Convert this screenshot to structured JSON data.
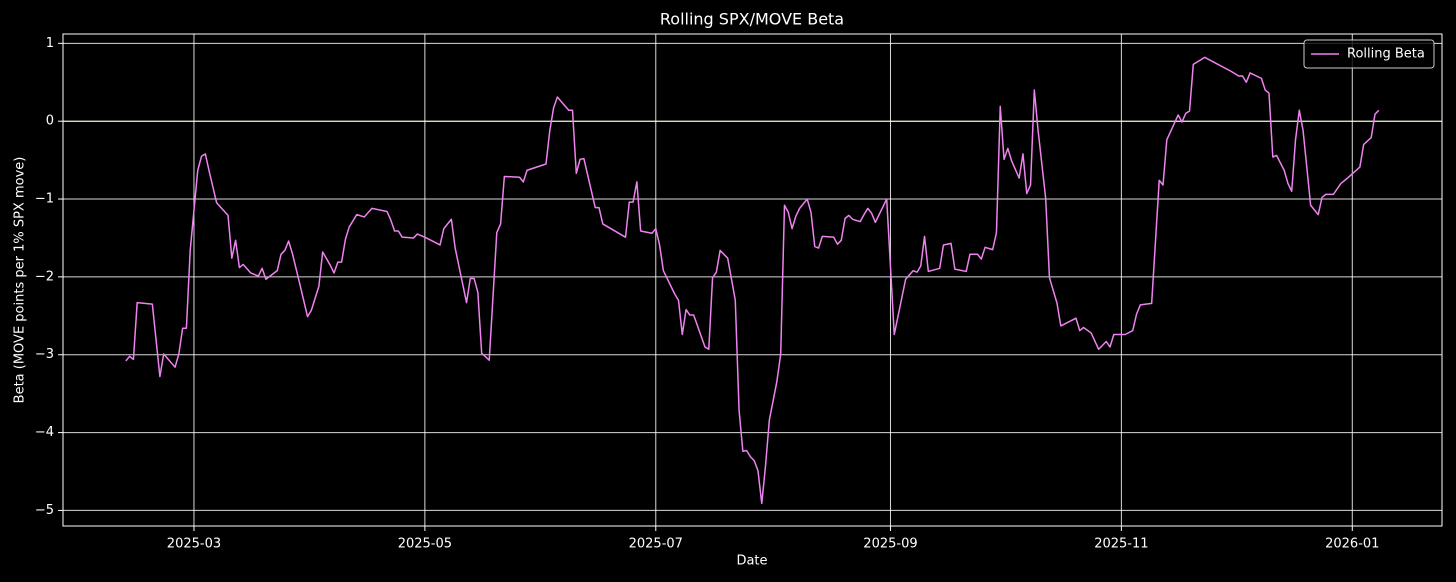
{
  "chart_data": {
    "type": "line",
    "title": "Rolling SPX/MOVE Beta",
    "x_label": "Date",
    "y_label": "Beta (MOVE points per 1% SPX move)",
    "xlim": [
      24.4,
      388.7
    ],
    "xticks": [
      {
        "value": 59,
        "label": "2025-03"
      },
      {
        "value": 120,
        "label": "2025-05"
      },
      {
        "value": 181,
        "label": "2025-07"
      },
      {
        "value": 243,
        "label": "2025-09"
      },
      {
        "value": 304,
        "label": "2025-11"
      },
      {
        "value": 365,
        "label": "2026-01"
      }
    ],
    "ylim": [
      -5.2,
      1.12
    ],
    "yticks": [
      {
        "value": -5,
        "label": "−5"
      },
      {
        "value": -4,
        "label": "−4"
      },
      {
        "value": -3,
        "label": "−3"
      },
      {
        "value": -2,
        "label": "−2"
      },
      {
        "value": -1,
        "label": "−1"
      },
      0,
      1
    ],
    "grid": true,
    "grid_color": "#ffffff",
    "hline": 0,
    "hline_color": "#ffffcc",
    "legend": "upper right",
    "x": [
      41,
      42,
      43,
      44,
      48,
      50,
      51,
      54,
      55,
      56,
      57,
      58,
      60,
      61,
      62,
      63,
      65,
      68,
      69,
      70,
      71,
      72,
      74,
      76,
      77,
      78,
      81,
      82,
      83,
      84,
      85,
      87,
      89,
      90,
      92,
      93,
      95,
      96,
      97,
      98,
      99,
      100,
      102,
      104,
      106,
      107,
      110,
      111,
      112,
      113,
      114,
      117,
      118,
      120,
      124,
      125,
      127,
      128,
      131,
      132,
      133,
      134,
      135,
      137,
      139,
      140,
      141,
      145,
      146,
      147,
      152,
      153,
      154,
      155,
      158,
      159,
      160,
      161,
      162,
      165,
      166,
      167,
      173,
      174,
      175,
      176,
      177,
      180,
      181,
      182,
      183,
      186,
      187,
      188,
      189,
      190,
      191,
      194,
      195,
      196,
      197,
      198,
      200,
      202,
      203,
      204,
      205,
      206,
      207,
      208,
      209,
      210,
      211,
      213,
      214,
      215,
      216,
      217,
      218,
      219,
      221,
      222,
      223,
      224,
      225,
      228,
      229,
      230,
      231,
      232,
      233,
      235,
      236,
      237,
      238,
      239,
      242,
      244,
      247,
      249,
      250,
      251,
      252,
      253,
      256,
      257,
      259,
      260,
      263,
      264,
      266,
      267,
      268,
      270,
      271,
      272,
      273,
      274,
      275,
      277,
      278,
      279,
      280,
      281,
      282,
      284,
      285,
      287,
      288,
      292,
      293,
      294,
      296,
      298,
      300,
      301,
      302,
      305,
      307,
      308,
      309,
      312,
      314,
      315,
      316,
      319,
      320,
      321,
      322,
      323,
      326,
      333,
      335,
      336,
      337,
      338,
      341,
      342,
      343,
      344,
      345,
      347,
      348,
      349,
      350,
      351,
      352,
      354,
      356,
      357,
      358,
      360,
      362,
      364,
      367,
      368,
      370,
      371,
      372
    ],
    "series": [
      {
        "name": "Rolling Beta",
        "color": "#ee82ee",
        "values": [
          -3.08,
          -3.02,
          -3.06,
          -2.33,
          -2.35,
          -3.28,
          -2.99,
          -3.16,
          -2.99,
          -2.66,
          -2.66,
          -1.66,
          -0.63,
          -0.45,
          -0.42,
          -0.64,
          -1.05,
          -1.21,
          -1.76,
          -1.53,
          -1.88,
          -1.84,
          -1.95,
          -1.99,
          -1.89,
          -2.03,
          -1.92,
          -1.71,
          -1.66,
          -1.54,
          -1.7,
          -2.1,
          -2.51,
          -2.43,
          -2.12,
          -1.68,
          -1.85,
          -1.95,
          -1.81,
          -1.81,
          -1.52,
          -1.36,
          -1.2,
          -1.23,
          -1.12,
          -1.13,
          -1.16,
          -1.27,
          -1.41,
          -1.41,
          -1.49,
          -1.5,
          -1.45,
          -1.49,
          -1.59,
          -1.38,
          -1.26,
          -1.63,
          -2.33,
          -2.02,
          -2.02,
          -2.2,
          -2.98,
          -3.07,
          -1.43,
          -1.32,
          -0.71,
          -0.72,
          -0.78,
          -0.63,
          -0.55,
          -0.12,
          0.17,
          0.31,
          0.14,
          0.14,
          -0.67,
          -0.49,
          -0.48,
          -1.11,
          -1.11,
          -1.32,
          -1.49,
          -1.04,
          -1.04,
          -0.78,
          -1.41,
          -1.44,
          -1.38,
          -1.59,
          -1.92,
          -2.22,
          -2.3,
          -2.74,
          -2.42,
          -2.49,
          -2.49,
          -2.9,
          -2.93,
          -2.01,
          -1.94,
          -1.66,
          -1.76,
          -2.3,
          -3.71,
          -4.24,
          -4.23,
          -4.31,
          -4.36,
          -4.49,
          -4.91,
          -4.42,
          -3.84,
          -3.34,
          -2.99,
          -1.08,
          -1.17,
          -1.38,
          -1.22,
          -1.12,
          -1.0,
          -1.17,
          -1.61,
          -1.63,
          -1.48,
          -1.49,
          -1.58,
          -1.53,
          -1.25,
          -1.21,
          -1.26,
          -1.29,
          -1.2,
          -1.12,
          -1.18,
          -1.3,
          -1.0,
          -2.74,
          -2.03,
          -1.92,
          -1.94,
          -1.86,
          -1.48,
          -1.93,
          -1.89,
          -1.59,
          -1.57,
          -1.9,
          -1.93,
          -1.71,
          -1.71,
          -1.77,
          -1.62,
          -1.65,
          -1.43,
          0.19,
          -0.49,
          -0.35,
          -0.51,
          -0.73,
          -0.42,
          -0.93,
          -0.82,
          0.4,
          -0.12,
          -0.99,
          -2.01,
          -2.34,
          -2.63,
          -2.53,
          -2.69,
          -2.65,
          -2.72,
          -2.93,
          -2.83,
          -2.9,
          -2.74,
          -2.74,
          -2.69,
          -2.48,
          -2.36,
          -2.34,
          -0.76,
          -0.82,
          -0.24,
          0.08,
          -0.01,
          0.1,
          0.13,
          0.73,
          0.82,
          0.64,
          0.58,
          0.58,
          0.5,
          0.62,
          0.55,
          0.4,
          0.36,
          -0.46,
          -0.44,
          -0.63,
          -0.8,
          -0.9,
          -0.24,
          0.14,
          -0.12,
          -1.08,
          -1.2,
          -0.98,
          -0.94,
          -0.94,
          -0.8,
          -0.72,
          -0.59,
          -0.3,
          -0.21,
          0.09,
          0.14
        ]
      }
    ]
  }
}
